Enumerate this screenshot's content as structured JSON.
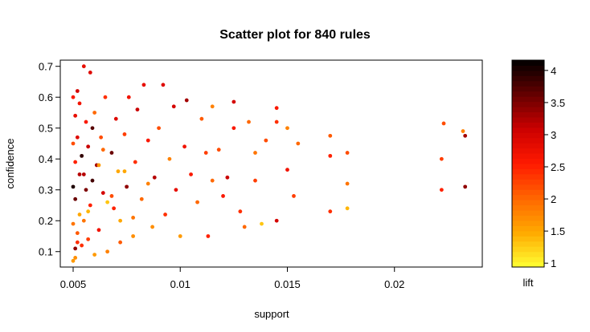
{
  "chart_data": {
    "type": "scatter",
    "title": "Scatter plot for 840 rules",
    "xlabel": "support",
    "ylabel": "confidence",
    "colorbar_label": "lift",
    "xlim": [
      0.0044,
      0.0241
    ],
    "ylim": [
      0.05,
      0.72
    ],
    "xticks": [
      0.005,
      0.01,
      0.015,
      0.02
    ],
    "yticks": [
      0.1,
      0.2,
      0.3,
      0.4,
      0.5,
      0.6,
      0.7
    ],
    "zlim": [
      0.94,
      4.16
    ],
    "zticks": [
      1,
      1.5,
      2,
      2.5,
      3,
      3.5,
      4
    ],
    "colorscale": [
      "#ffff33",
      "#ffaa00",
      "#ff6600",
      "#ff1a00",
      "#cc0000",
      "#660000",
      "#000000"
    ],
    "x": [
      0.0232,
      0.0233,
      0.0233,
      0.0223,
      0.0222,
      0.0222,
      0.0178,
      0.0178,
      0.0178,
      0.017,
      0.017,
      0.017,
      0.0155,
      0.0153,
      0.015,
      0.015,
      0.0145,
      0.0145,
      0.0145,
      0.014,
      0.0138,
      0.0135,
      0.0135,
      0.0132,
      0.013,
      0.0128,
      0.0125,
      0.0125,
      0.0122,
      0.012,
      0.0118,
      0.0115,
      0.0115,
      0.0113,
      0.0112,
      0.011,
      0.0108,
      0.0105,
      0.0103,
      0.0102,
      0.01,
      0.0098,
      0.0097,
      0.0095,
      0.0093,
      0.0092,
      0.009,
      0.0088,
      0.0087,
      0.0085,
      0.0083,
      0.0082,
      0.008,
      0.0079,
      0.0078,
      0.0076,
      0.0075,
      0.0074,
      0.0072,
      0.0071,
      0.007,
      0.0069,
      0.0068,
      0.0066,
      0.0065,
      0.0064,
      0.0063,
      0.0062,
      0.0061,
      0.006,
      0.006,
      0.0059,
      0.0058,
      0.0058,
      0.0057,
      0.0057,
      0.0056,
      0.0056,
      0.0055,
      0.0055,
      0.0054,
      0.0054,
      0.0053,
      0.0053,
      0.0053,
      0.0052,
      0.0052,
      0.0052,
      0.0051,
      0.0051,
      0.0051,
      0.0051,
      0.0051,
      0.005,
      0.005,
      0.005,
      0.005,
      0.005,
      0.0057,
      0.0062,
      0.0066,
      0.0072,
      0.0078,
      0.0085,
      0.0064,
      0.0059,
      0.0055,
      0.0052,
      0.0068,
      0.0074
    ],
    "y": [
      0.49,
      0.475,
      0.31,
      0.515,
      0.4,
      0.3,
      0.42,
      0.32,
      0.24,
      0.475,
      0.41,
      0.23,
      0.45,
      0.28,
      0.5,
      0.365,
      0.565,
      0.52,
      0.2,
      0.46,
      0.19,
      0.42,
      0.33,
      0.52,
      0.18,
      0.23,
      0.585,
      0.5,
      0.34,
      0.28,
      0.43,
      0.57,
      0.33,
      0.15,
      0.42,
      0.53,
      0.26,
      0.35,
      0.59,
      0.44,
      0.15,
      0.3,
      0.57,
      0.4,
      0.22,
      0.64,
      0.5,
      0.34,
      0.18,
      0.46,
      0.64,
      0.27,
      0.56,
      0.39,
      0.21,
      0.6,
      0.31,
      0.48,
      0.13,
      0.36,
      0.53,
      0.24,
      0.42,
      0.1,
      0.6,
      0.29,
      0.47,
      0.17,
      0.38,
      0.55,
      0.09,
      0.33,
      0.25,
      0.68,
      0.44,
      0.14,
      0.52,
      0.3,
      0.7,
      0.2,
      0.41,
      0.12,
      0.58,
      0.35,
      0.22,
      0.47,
      0.16,
      0.62,
      0.27,
      0.39,
      0.08,
      0.54,
      0.11,
      0.45,
      0.19,
      0.31,
      0.6,
      0.07,
      0.23,
      0.38,
      0.26,
      0.2,
      0.15,
      0.32,
      0.43,
      0.5,
      0.35,
      0.13,
      0.28,
      0.36
    ],
    "lift": [
      1.8,
      3.3,
      3.4,
      2.2,
      2.3,
      2.5,
      2.2,
      1.9,
      1.4,
      2.1,
      2.5,
      2.4,
      2.0,
      2.3,
      1.8,
      2.7,
      2.6,
      2.4,
      3.0,
      2.2,
      1.3,
      1.9,
      2.3,
      2.0,
      2.0,
      2.4,
      3.0,
      2.6,
      3.1,
      2.6,
      2.2,
      1.8,
      2.0,
      2.5,
      2.3,
      2.1,
      2.0,
      2.6,
      3.3,
      2.7,
      1.6,
      2.8,
      3.0,
      1.8,
      2.4,
      2.9,
      2.2,
      3.2,
      1.7,
      2.6,
      2.8,
      2.0,
      3.1,
      2.4,
      1.9,
      2.7,
      3.4,
      2.3,
      2.1,
      1.5,
      2.9,
      2.5,
      3.6,
      1.8,
      2.4,
      3.0,
      2.2,
      2.7,
      3.3,
      2.0,
      1.6,
      3.8,
      2.5,
      2.9,
      3.1,
      2.3,
      2.6,
      3.5,
      2.8,
      1.9,
      3.9,
      2.4,
      2.7,
      3.2,
      1.5,
      2.9,
      2.1,
      3.0,
      3.6,
      2.5,
      1.7,
      2.8,
      3.4,
      2.2,
      1.9,
      4.0,
      2.6,
      1.6,
      1.4,
      1.6,
      1.3,
      1.5,
      1.7,
      1.8,
      2.0,
      3.7,
      3.2,
      2.4,
      2.2,
      1.5
    ]
  }
}
